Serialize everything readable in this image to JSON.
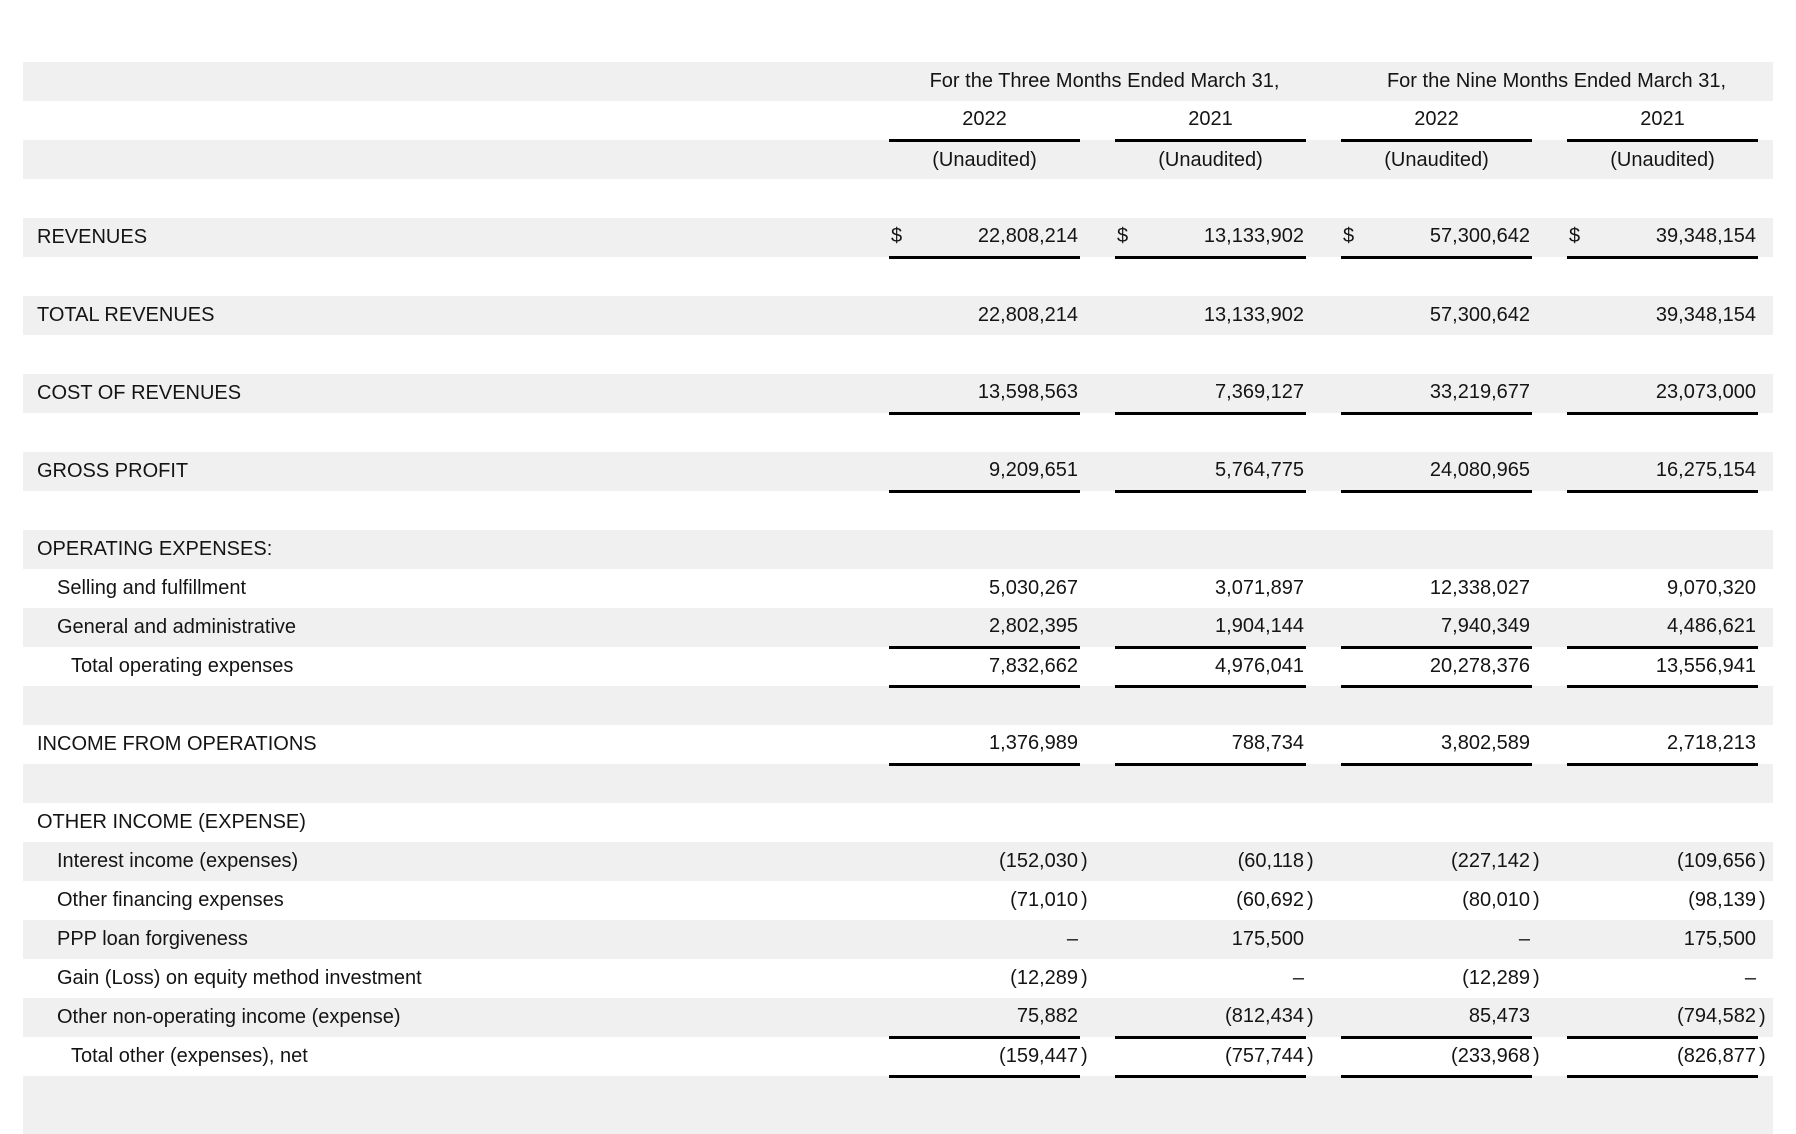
{
  "table": {
    "col_headers": {
      "three_months": "For the Three Months Ended March 31,",
      "nine_months": "For the Nine Months Ended March 31,",
      "years": [
        "2022",
        "2021",
        "2022",
        "2021"
      ],
      "unaudited": [
        "(Unaudited)",
        "(Unaudited)",
        "(Unaudited)",
        "(Unaudited)"
      ]
    },
    "rows": [
      {
        "kind": "blank"
      },
      {
        "kind": "period-headers"
      },
      {
        "kind": "years"
      },
      {
        "kind": "unaudited"
      },
      {
        "kind": "blank"
      },
      {
        "kind": "data",
        "label": "REVENUES",
        "indent": 0,
        "dollar": true,
        "underline": true,
        "values": [
          "22,808,214",
          "13,133,902",
          "57,300,642",
          "39,348,154"
        ]
      },
      {
        "kind": "blank"
      },
      {
        "kind": "data",
        "label": "TOTAL REVENUES",
        "indent": 0,
        "dollar": false,
        "underline": false,
        "values": [
          "22,808,214",
          "13,133,902",
          "57,300,642",
          "39,348,154"
        ]
      },
      {
        "kind": "blank"
      },
      {
        "kind": "data",
        "label": "COST OF REVENUES",
        "indent": 0,
        "dollar": false,
        "underline": true,
        "values": [
          "13,598,563",
          "7,369,127",
          "33,219,677",
          "23,073,000"
        ]
      },
      {
        "kind": "blank"
      },
      {
        "kind": "data",
        "label": "GROSS PROFIT",
        "indent": 0,
        "dollar": false,
        "underline": true,
        "values": [
          "9,209,651",
          "5,764,775",
          "24,080,965",
          "16,275,154"
        ]
      },
      {
        "kind": "blank"
      },
      {
        "kind": "section",
        "label": "OPERATING EXPENSES:"
      },
      {
        "kind": "data",
        "label": "Selling and fulfillment",
        "indent": 1,
        "dollar": false,
        "underline": false,
        "values": [
          "5,030,267",
          "3,071,897",
          "12,338,027",
          "9,070,320"
        ]
      },
      {
        "kind": "data",
        "label": "General and administrative",
        "indent": 1,
        "dollar": false,
        "underline": true,
        "values": [
          "2,802,395",
          "1,904,144",
          "7,940,349",
          "4,486,621"
        ]
      },
      {
        "kind": "data",
        "label": "Total operating expenses",
        "indent": 2,
        "dollar": false,
        "underline": true,
        "values": [
          "7,832,662",
          "4,976,041",
          "20,278,376",
          "13,556,941"
        ]
      },
      {
        "kind": "blank"
      },
      {
        "kind": "data",
        "label": "INCOME FROM OPERATIONS",
        "indent": 0,
        "dollar": false,
        "underline": true,
        "values": [
          "1,376,989",
          "788,734",
          "3,802,589",
          "2,718,213"
        ]
      },
      {
        "kind": "blank"
      },
      {
        "kind": "section",
        "label": "OTHER INCOME (EXPENSE)"
      },
      {
        "kind": "data",
        "label": "Interest income (expenses)",
        "indent": 1,
        "dollar": false,
        "underline": false,
        "values": [
          "(152,030)",
          "(60,118)",
          "(227,142)",
          "(109,656)"
        ]
      },
      {
        "kind": "data",
        "label": "Other financing expenses",
        "indent": 1,
        "dollar": false,
        "underline": false,
        "values": [
          "(71,010)",
          "(60,692)",
          "(80,010)",
          "(98,139)"
        ]
      },
      {
        "kind": "data",
        "label": "PPP loan forgiveness",
        "indent": 1,
        "dollar": false,
        "underline": false,
        "values": [
          "–",
          "175,500",
          "–",
          "175,500"
        ]
      },
      {
        "kind": "data",
        "label": "Gain (Loss) on equity method investment",
        "indent": 1,
        "dollar": false,
        "underline": false,
        "values": [
          "(12,289)",
          "–",
          "(12,289)",
          "–"
        ]
      },
      {
        "kind": "data",
        "label": "Other non-operating income (expense)",
        "indent": 1,
        "dollar": false,
        "underline": true,
        "values": [
          "75,882",
          "(812,434)",
          "85,473",
          "(794,582)"
        ]
      },
      {
        "kind": "data",
        "label": "Total other (expenses), net",
        "indent": 2,
        "dollar": false,
        "underline": true,
        "values": [
          "(159,447)",
          "(757,744)",
          "(233,968)",
          "(826,877)"
        ]
      },
      {
        "kind": "blank"
      }
    ],
    "style": {
      "stripe_color": "#f0f0f0",
      "rule_color": "#000000",
      "text_color": "#141414"
    }
  }
}
